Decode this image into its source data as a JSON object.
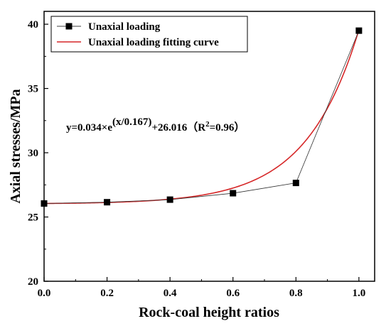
{
  "chart_data": {
    "type": "scatter",
    "xlabel": "Rock-coal height ratios",
    "ylabel": "Axial  stresses/MPa",
    "xlim": [
      0.0,
      1.05
    ],
    "ylim": [
      20,
      41
    ],
    "xticks": [
      "0.0",
      "0.2",
      "0.4",
      "0.6",
      "0.8",
      "1.0"
    ],
    "xtick_values": [
      0.0,
      0.2,
      0.4,
      0.6,
      0.8,
      1.0
    ],
    "yticks": [
      "20",
      "25",
      "30",
      "35",
      "40"
    ],
    "ytick_values": [
      20,
      25,
      30,
      35,
      40
    ],
    "grid": false,
    "legend_position": "top-left",
    "series": [
      {
        "name": "Unaxial loading",
        "kind": "line+markers",
        "color": "#000000",
        "marker": "square",
        "x": [
          0.0,
          0.2,
          0.4,
          0.6,
          0.8,
          1.0
        ],
        "y": [
          26.05,
          26.15,
          26.35,
          26.85,
          27.65,
          39.5
        ]
      },
      {
        "name": "Unaxial loading fitting curve",
        "kind": "fit",
        "color": "#d62728",
        "model": {
          "a": 0.034,
          "b": 0.167,
          "c": 26.016
        }
      }
    ],
    "annotation": {
      "prefix": "y=0.034×e",
      "exponent": "(x/0.167)",
      "middle": "+26.016（R",
      "r2_sup": "2",
      "suffix": "=0.96）"
    }
  }
}
